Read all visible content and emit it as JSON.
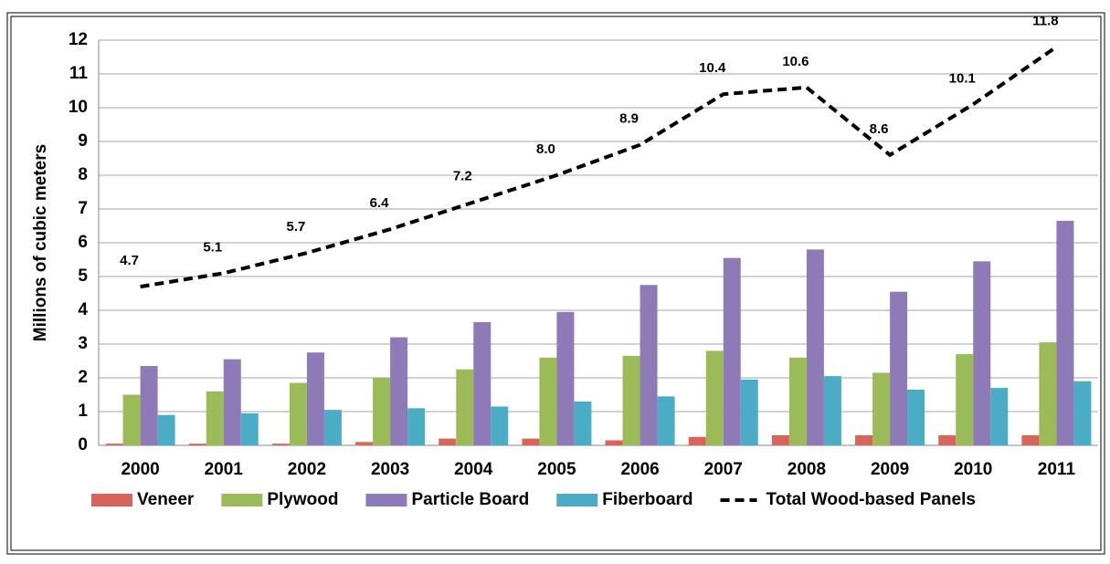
{
  "chart_data": {
    "type": "bar-line",
    "y_label": "Millions of cubic meters",
    "categories": [
      "2000",
      "2001",
      "2002",
      "2003",
      "2004",
      "2005",
      "2006",
      "2007",
      "2008",
      "2009",
      "2010",
      "2011"
    ],
    "series": [
      {
        "name": "Veneer",
        "color": "#d9645c",
        "type": "bar",
        "values": [
          0.05,
          0.05,
          0.05,
          0.1,
          0.2,
          0.2,
          0.15,
          0.25,
          0.3,
          0.3,
          0.3,
          0.3
        ]
      },
      {
        "name": "Plywood",
        "color": "#9bbb59",
        "type": "bar",
        "values": [
          1.5,
          1.6,
          1.85,
          2.0,
          2.25,
          2.6,
          2.65,
          2.8,
          2.6,
          2.15,
          2.7,
          3.05
        ]
      },
      {
        "name": "Particle Board",
        "color": "#8f7ab8",
        "type": "bar",
        "values": [
          2.35,
          2.55,
          2.75,
          3.2,
          3.65,
          3.95,
          4.75,
          5.55,
          5.8,
          4.55,
          5.45,
          6.65
        ]
      },
      {
        "name": "Fiberboard",
        "color": "#4bacc6",
        "type": "bar",
        "values": [
          0.9,
          0.95,
          1.05,
          1.1,
          1.15,
          1.3,
          1.45,
          1.95,
          2.05,
          1.65,
          1.7,
          1.9
        ]
      },
      {
        "name": "Total Wood-based Panels",
        "color": "#000000",
        "type": "line",
        "dashed": true,
        "values": [
          4.7,
          5.1,
          5.7,
          6.4,
          7.2,
          8.0,
          8.9,
          10.4,
          10.6,
          8.6,
          10.1,
          11.8
        ],
        "value_labels": [
          "4.7",
          "5.1",
          "5.7",
          "6.4",
          "7.2",
          "8.0",
          "8.9",
          "10.4",
          "10.6",
          "8.6",
          "10.1",
          "11.8"
        ]
      }
    ],
    "ylim": [
      0,
      12
    ],
    "yticks": [
      0,
      1,
      2,
      3,
      4,
      5,
      6,
      7,
      8,
      9,
      10,
      11,
      12
    ],
    "grid": true,
    "legend": "bottom"
  }
}
